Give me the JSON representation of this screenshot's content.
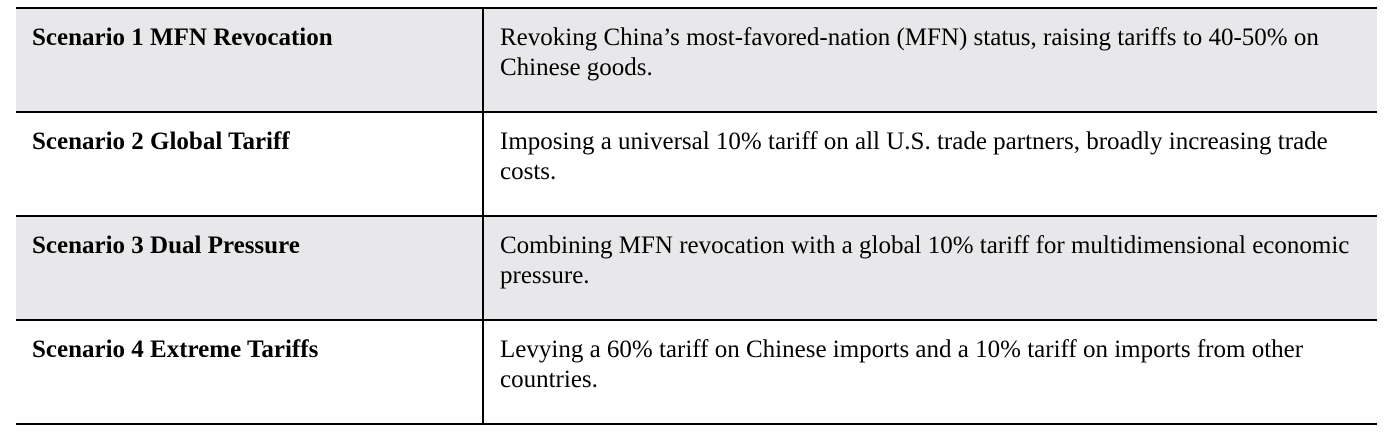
{
  "scenarios": [
    {
      "name": "Scenario 1 MFN Revocation",
      "description": "Revoking China’s most-favored-nation (MFN) status, raising tariffs to 40-50% on Chinese goods."
    },
    {
      "name": "Scenario 2 Global Tariff",
      "description": "Imposing a universal 10% tariff on all U.S. trade partners, broadly increasing trade costs."
    },
    {
      "name": "Scenario 3 Dual Pressure",
      "description": "Combining MFN revocation with a global 10% tariff for multidimensional economic pressure."
    },
    {
      "name": "Scenario 4 Extreme Tariffs",
      "description": "Levying a 60% tariff on Chinese imports and a 10% tariff on imports from other countries."
    }
  ],
  "colors": {
    "shaded_row": "#e8e7e9",
    "plain_row": "#ffffff",
    "rule": "#000000"
  }
}
